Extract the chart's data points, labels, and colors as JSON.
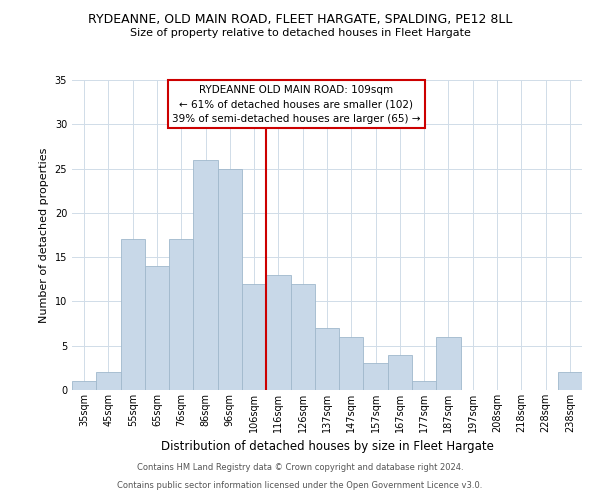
{
  "title": "RYDEANNE, OLD MAIN ROAD, FLEET HARGATE, SPALDING, PE12 8LL",
  "subtitle": "Size of property relative to detached houses in Fleet Hargate",
  "xlabel": "Distribution of detached houses by size in Fleet Hargate",
  "ylabel": "Number of detached properties",
  "categories": [
    "35sqm",
    "45sqm",
    "55sqm",
    "65sqm",
    "76sqm",
    "86sqm",
    "96sqm",
    "106sqm",
    "116sqm",
    "126sqm",
    "137sqm",
    "147sqm",
    "157sqm",
    "167sqm",
    "177sqm",
    "187sqm",
    "197sqm",
    "208sqm",
    "218sqm",
    "228sqm",
    "238sqm"
  ],
  "values": [
    1,
    2,
    17,
    14,
    17,
    26,
    25,
    12,
    13,
    12,
    7,
    6,
    3,
    4,
    1,
    6,
    0,
    0,
    0,
    0,
    2
  ],
  "bar_color": "#c8d8e8",
  "bar_edgecolor": "#a0b8cc",
  "vline_x_idx": 7,
  "vline_color": "#cc0000",
  "annotation_title": "RYDEANNE OLD MAIN ROAD: 109sqm",
  "annotation_line1": "← 61% of detached houses are smaller (102)",
  "annotation_line2": "39% of semi-detached houses are larger (65) →",
  "annotation_box_edgecolor": "#cc0000",
  "ylim": [
    0,
    35
  ],
  "yticks": [
    0,
    5,
    10,
    15,
    20,
    25,
    30,
    35
  ],
  "footer1": "Contains HM Land Registry data © Crown copyright and database right 2024.",
  "footer2": "Contains public sector information licensed under the Open Government Licence v3.0.",
  "background_color": "#ffffff",
  "grid_color": "#d0dce8",
  "title_fontsize": 9.0,
  "subtitle_fontsize": 8.0,
  "xlabel_fontsize": 8.5,
  "ylabel_fontsize": 8.0,
  "tick_fontsize": 7.0,
  "annotation_fontsize": 7.5,
  "footer_fontsize": 6.0
}
